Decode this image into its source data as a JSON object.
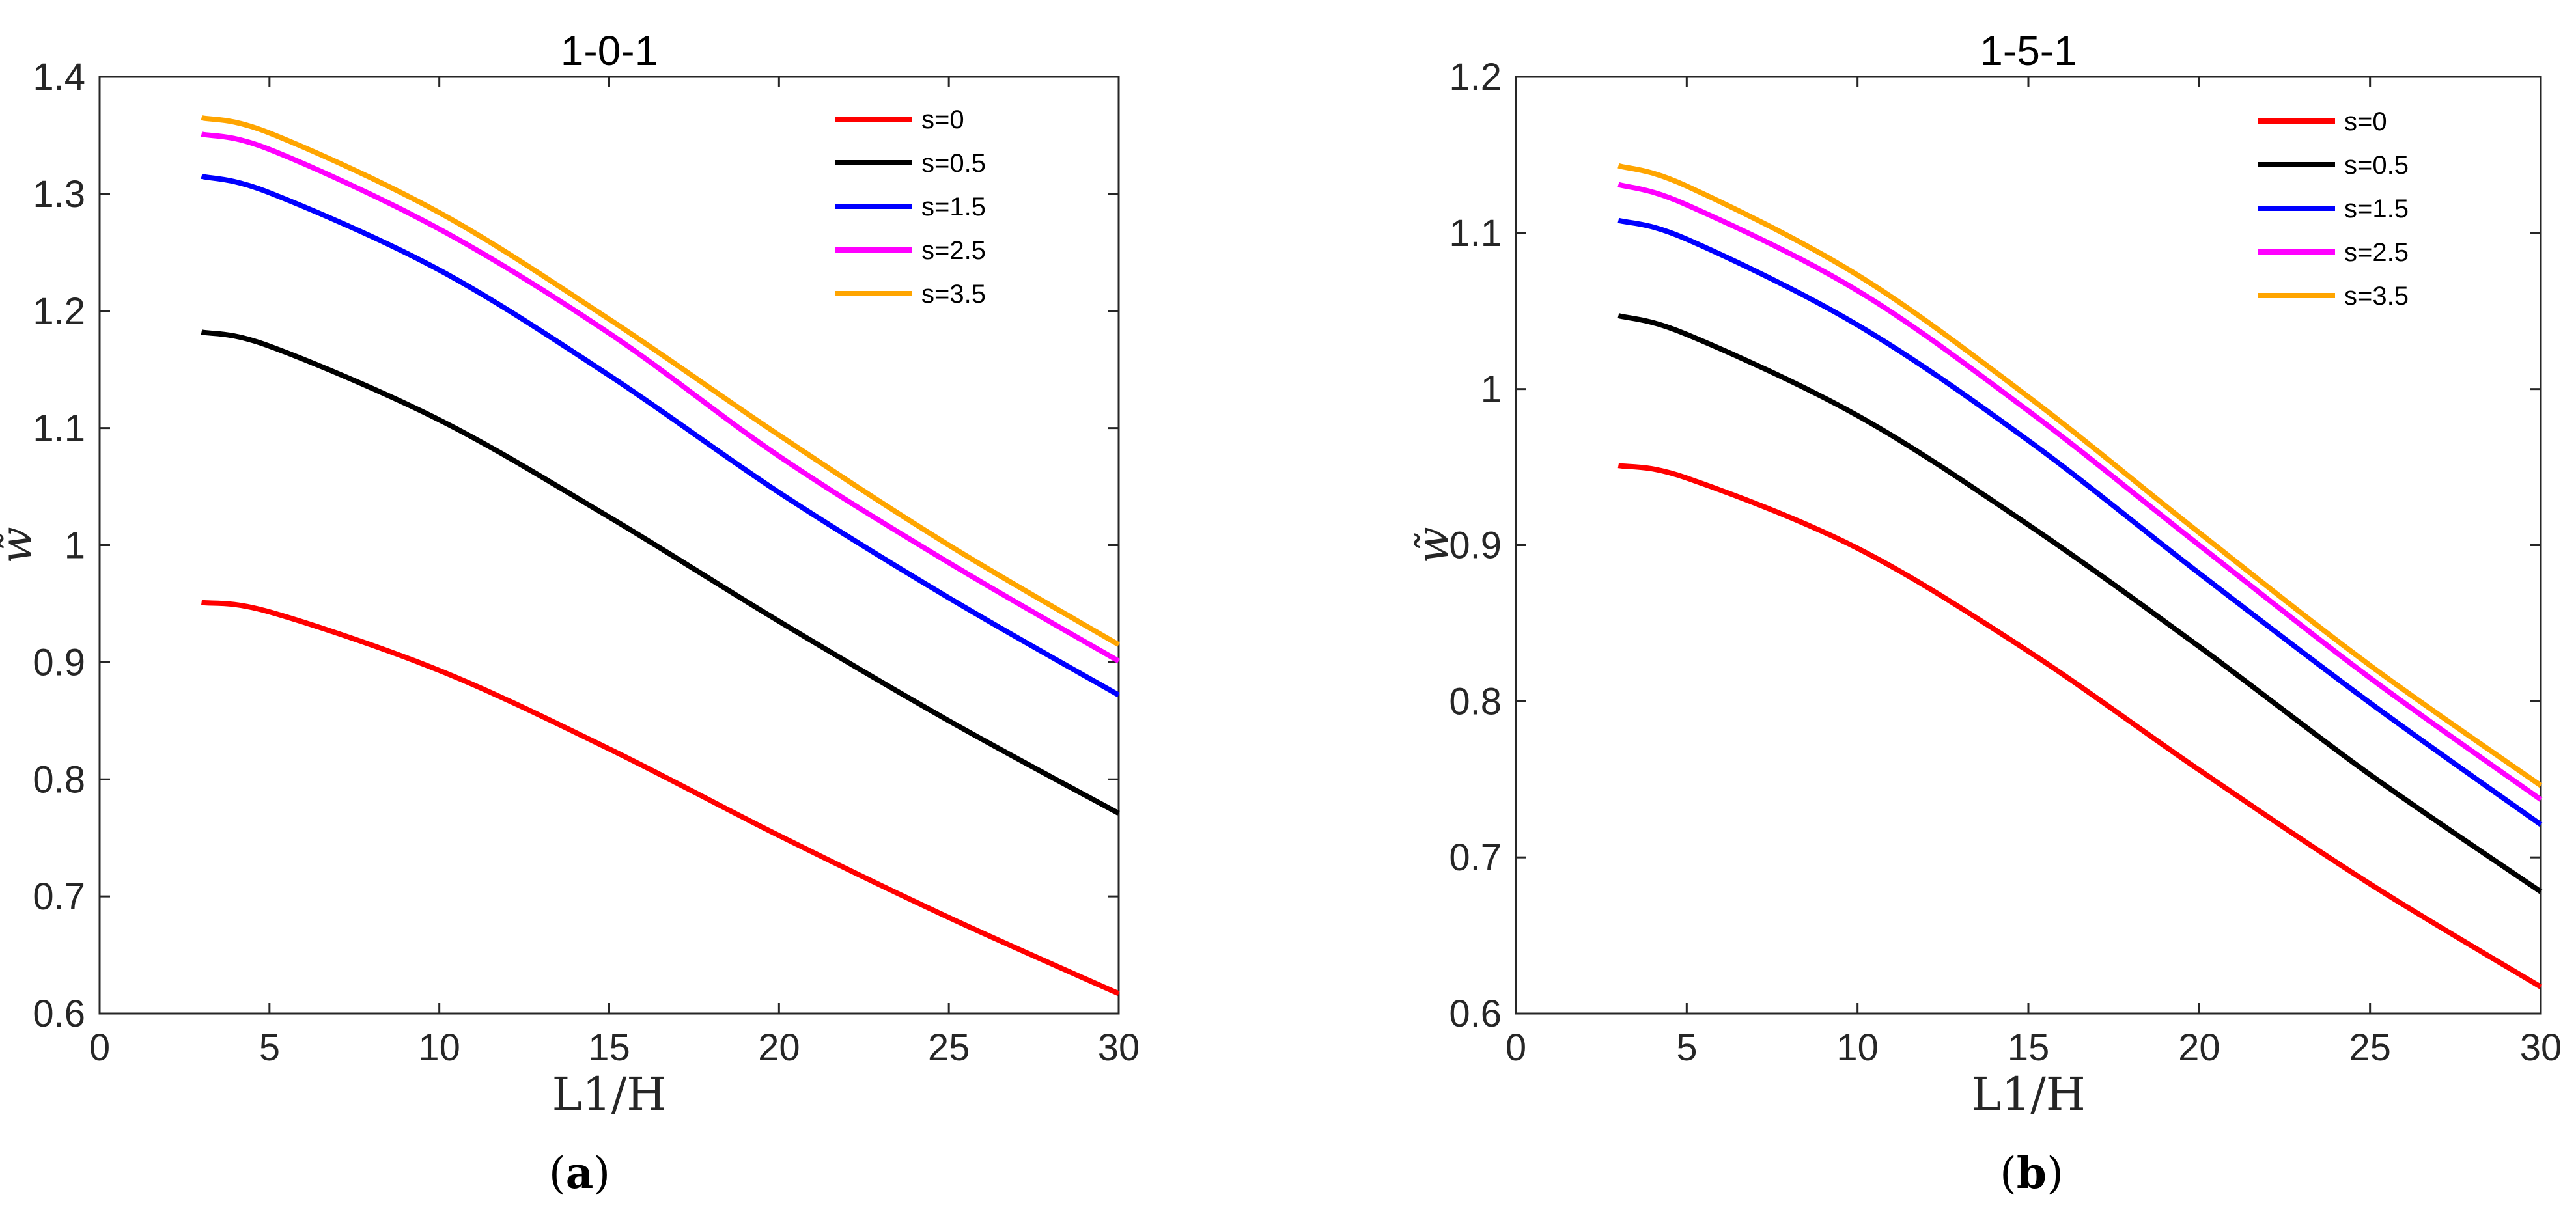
{
  "chart_data": [
    {
      "type": "line",
      "panel": "a",
      "caption_open": "(",
      "caption_letter": "a",
      "caption_close": ")",
      "title": "1-0-1",
      "xlabel": "L1/H",
      "ylabel": "w̃",
      "xlim": [
        0,
        30
      ],
      "ylim": [
        0.6,
        1.4
      ],
      "xticks": [
        "0",
        "5",
        "10",
        "15",
        "20",
        "25",
        "30"
      ],
      "yticks": [
        "0.6",
        "0.7",
        "0.8",
        "0.9",
        "1",
        "1.1",
        "1.2",
        "1.3",
        "1.4"
      ],
      "legend_position": "top-right",
      "x": [
        3,
        5,
        10,
        15,
        20,
        25,
        30
      ],
      "series": [
        {
          "name": "s=0",
          "color": "#ff0000",
          "values": [
            0.951,
            0.943,
            0.893,
            0.826,
            0.752,
            0.682,
            0.617
          ]
        },
        {
          "name": "s=0.5",
          "color": "#000000",
          "values": [
            1.182,
            1.17,
            1.107,
            1.024,
            0.935,
            0.85,
            0.771
          ]
        },
        {
          "name": "s=1.5",
          "color": "#0000ff",
          "values": [
            1.315,
            1.301,
            1.235,
            1.145,
            1.045,
            0.955,
            0.872
          ]
        },
        {
          "name": "s=2.5",
          "color": "#ff00ff",
          "values": [
            1.351,
            1.338,
            1.27,
            1.181,
            1.076,
            0.985,
            0.901
          ]
        },
        {
          "name": "s=3.5",
          "color": "#ffa500",
          "values": [
            1.365,
            1.352,
            1.284,
            1.193,
            1.094,
            1.0,
            0.915
          ]
        }
      ]
    },
    {
      "type": "line",
      "panel": "b",
      "caption_open": "(",
      "caption_letter": "b",
      "caption_close": ")",
      "title": "1-5-1",
      "xlabel": "L1/H",
      "ylabel": "w̃",
      "xlim": [
        0,
        30
      ],
      "ylim": [
        0.6,
        1.2
      ],
      "xticks": [
        "0",
        "5",
        "10",
        "15",
        "20",
        "25",
        "30"
      ],
      "yticks": [
        "0.6",
        "0.7",
        "0.8",
        "0.9",
        "1",
        "1.1",
        "1.2"
      ],
      "legend_position": "top-right",
      "x": [
        3,
        5,
        10,
        15,
        20,
        25,
        30
      ],
      "series": [
        {
          "name": "s=0",
          "color": "#ff0000",
          "values": [
            0.951,
            0.943,
            0.898,
            0.832,
            0.756,
            0.683,
            0.617
          ]
        },
        {
          "name": "s=0.5",
          "color": "#000000",
          "values": [
            1.047,
            1.035,
            0.983,
            0.913,
            0.835,
            0.753,
            0.678
          ]
        },
        {
          "name": "s=1.5",
          "color": "#0000ff",
          "values": [
            1.108,
            1.096,
            1.041,
            0.967,
            0.882,
            0.799,
            0.721
          ]
        },
        {
          "name": "s=2.5",
          "color": "#ff00ff",
          "values": [
            1.131,
            1.118,
            1.063,
            0.986,
            0.9,
            0.815,
            0.737
          ]
        },
        {
          "name": "s=3.5",
          "color": "#ffa500",
          "values": [
            1.143,
            1.13,
            1.073,
            0.995,
            0.908,
            0.823,
            0.746
          ]
        }
      ]
    }
  ]
}
